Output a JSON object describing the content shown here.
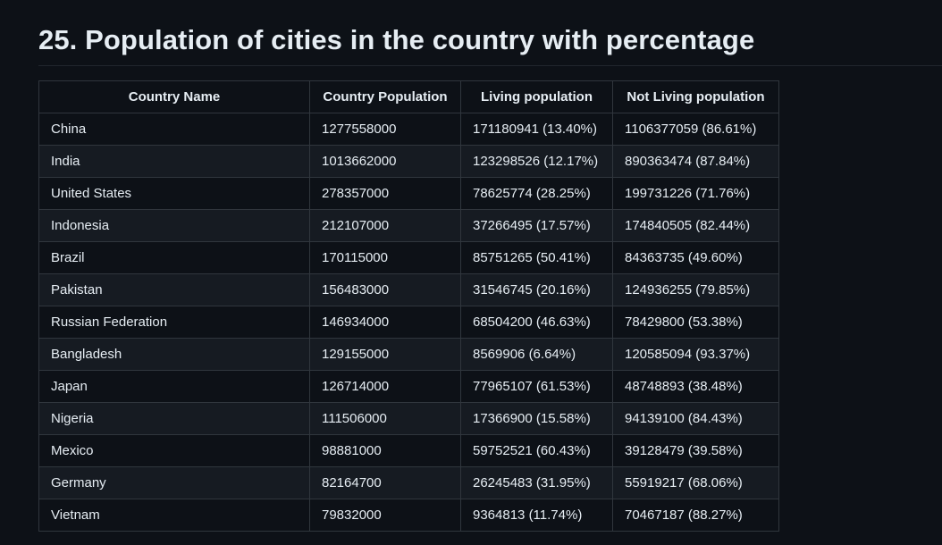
{
  "heading": "25. Population of cities in the country with percentage",
  "table": {
    "headers": [
      "Country Name",
      "Country Population",
      "Living population",
      "Not Living population"
    ],
    "rows": [
      [
        "China",
        "1277558000",
        "171180941 (13.40%)",
        "1106377059 (86.61%)"
      ],
      [
        "India",
        "1013662000",
        "123298526 (12.17%)",
        "890363474 (87.84%)"
      ],
      [
        "United States",
        "278357000",
        "78625774 (28.25%)",
        "199731226 (71.76%)"
      ],
      [
        "Indonesia",
        "212107000",
        "37266495 (17.57%)",
        "174840505 (82.44%)"
      ],
      [
        "Brazil",
        "170115000",
        "85751265 (50.41%)",
        "84363735 (49.60%)"
      ],
      [
        "Pakistan",
        "156483000",
        "31546745 (20.16%)",
        "124936255 (79.85%)"
      ],
      [
        "Russian Federation",
        "146934000",
        "68504200 (46.63%)",
        "78429800 (53.38%)"
      ],
      [
        "Bangladesh",
        "129155000",
        "8569906 (6.64%)",
        "120585094 (93.37%)"
      ],
      [
        "Japan",
        "126714000",
        "77965107 (61.53%)",
        "48748893 (38.48%)"
      ],
      [
        "Nigeria",
        "111506000",
        "17366900 (15.58%)",
        "94139100 (84.43%)"
      ],
      [
        "Mexico",
        "98881000",
        "59752521 (60.43%)",
        "39128479 (39.58%)"
      ],
      [
        "Germany",
        "82164700",
        "26245483 (31.95%)",
        "55919217 (68.06%)"
      ],
      [
        "Vietnam",
        "79832000",
        "9364813 (11.74%)",
        "70467187 (88.27%)"
      ]
    ]
  }
}
